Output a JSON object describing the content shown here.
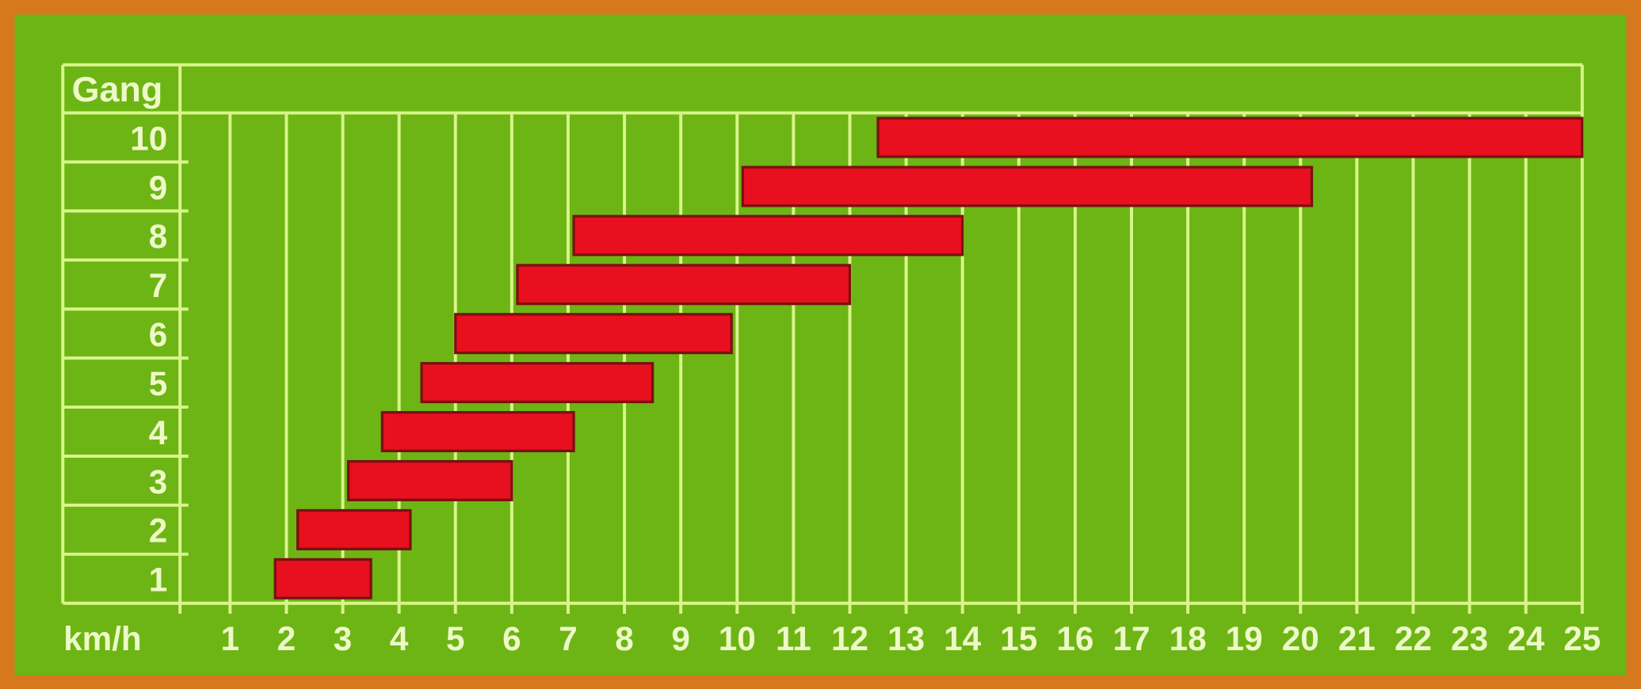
{
  "chart_data": {
    "type": "bar",
    "orientation": "horizontal-range",
    "ylabel": "Gang",
    "xlabel": "km/h",
    "categories": [
      "1",
      "2",
      "3",
      "4",
      "5",
      "6",
      "7",
      "8",
      "9",
      "10"
    ],
    "x_ticks": [
      "1",
      "2",
      "3",
      "4",
      "5",
      "6",
      "7",
      "8",
      "9",
      "10",
      "11",
      "12",
      "13",
      "14",
      "15",
      "16",
      "17",
      "18",
      "19",
      "20",
      "21",
      "22",
      "23",
      "24",
      "25"
    ],
    "xlim": [
      0,
      25
    ],
    "grid": true,
    "legend": "none",
    "ranges": [
      {
        "gear": "1",
        "from": 1.8,
        "to": 3.5
      },
      {
        "gear": "2",
        "from": 2.2,
        "to": 4.2
      },
      {
        "gear": "3",
        "from": 3.1,
        "to": 6.0
      },
      {
        "gear": "4",
        "from": 3.7,
        "to": 7.1
      },
      {
        "gear": "5",
        "from": 4.4,
        "to": 8.5
      },
      {
        "gear": "6",
        "from": 5.0,
        "to": 9.9
      },
      {
        "gear": "7",
        "from": 6.1,
        "to": 12.0
      },
      {
        "gear": "8",
        "from": 7.1,
        "to": 14.0
      },
      {
        "gear": "9",
        "from": 10.1,
        "to": 20.2
      },
      {
        "gear": "10",
        "from": 12.5,
        "to": 25.0
      }
    ],
    "colors": {
      "background": "#6db514",
      "frame": "#d5781e",
      "grid": "#d8f58a",
      "bar": "#e8101e",
      "bar_edge": "#7a1010"
    }
  }
}
